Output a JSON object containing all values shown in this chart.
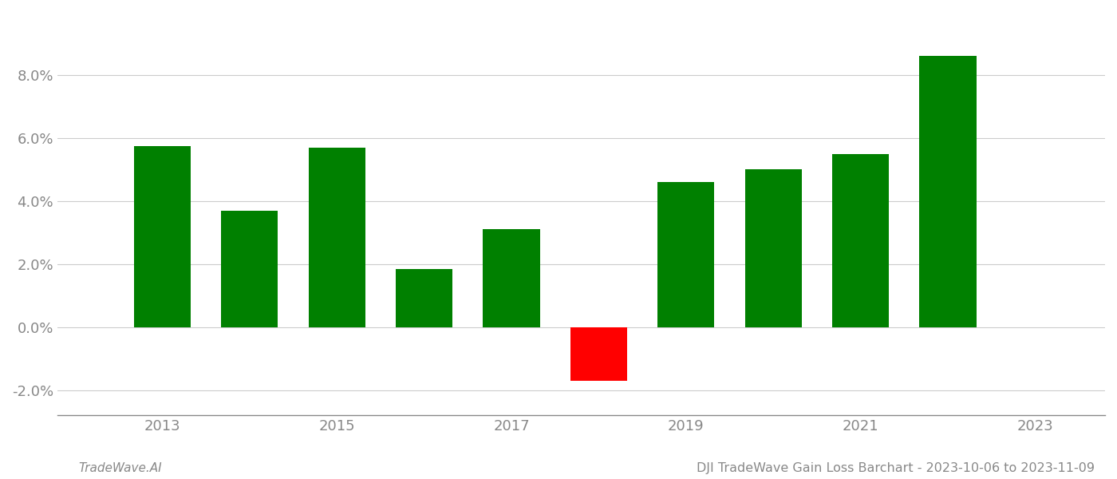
{
  "years": [
    2013,
    2014,
    2015,
    2016,
    2017,
    2018,
    2019,
    2020,
    2021,
    2022
  ],
  "values": [
    0.0575,
    0.037,
    0.057,
    0.0185,
    0.031,
    -0.017,
    0.046,
    0.05,
    0.055,
    0.086
  ],
  "colors": [
    "#008000",
    "#008000",
    "#008000",
    "#008000",
    "#008000",
    "#ff0000",
    "#008000",
    "#008000",
    "#008000",
    "#008000"
  ],
  "title": "DJI TradeWave Gain Loss Barchart - 2023-10-06 to 2023-11-09",
  "watermark": "TradeWave.AI",
  "ylim": [
    -0.028,
    0.1
  ],
  "yticks": [
    -0.02,
    0.0,
    0.02,
    0.04,
    0.06,
    0.08
  ],
  "xticks": [
    2013,
    2015,
    2017,
    2019,
    2021,
    2023
  ],
  "xlim": [
    2011.8,
    2023.8
  ],
  "background_color": "#ffffff",
  "grid_color": "#cccccc",
  "axis_color": "#888888",
  "title_fontsize": 11.5,
  "watermark_fontsize": 11,
  "tick_fontsize": 13,
  "bar_width": 0.65
}
